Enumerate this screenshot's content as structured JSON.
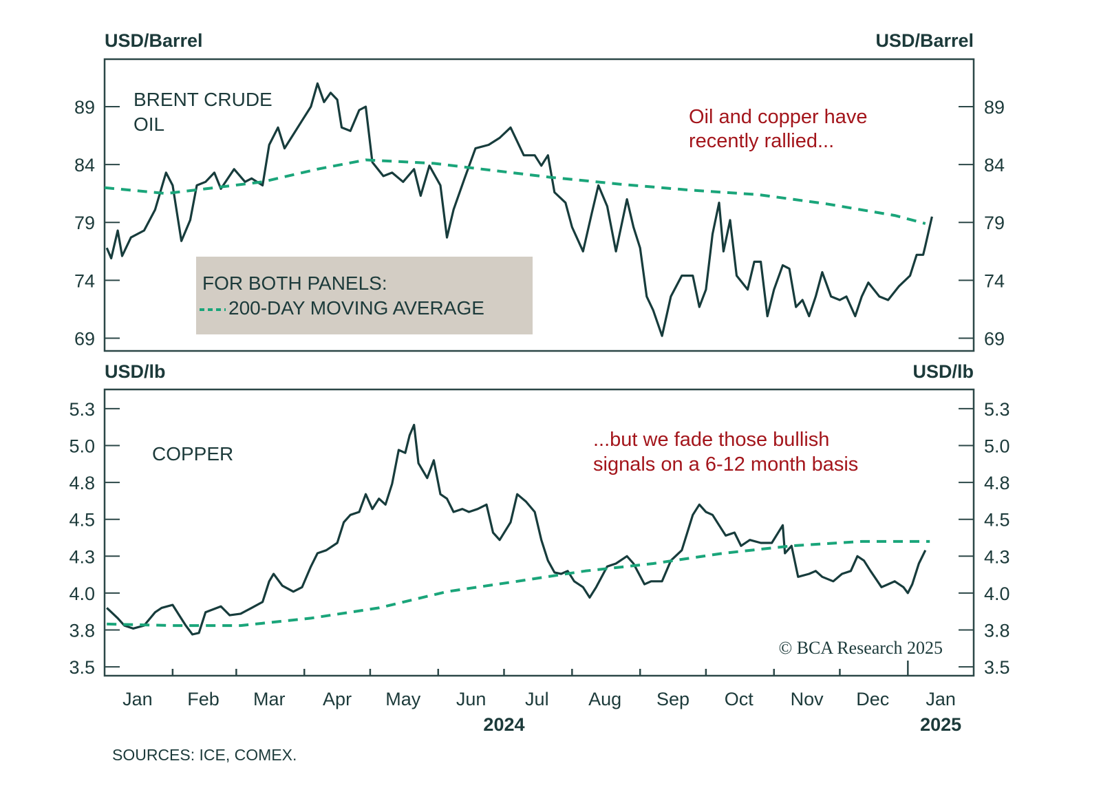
{
  "colors": {
    "price": "#173c3c",
    "moving_average": "#1aa57a",
    "annotation": "#a3151b",
    "legend_box": "#d3cdc4",
    "axis": "#2b4747"
  },
  "x_axis": {
    "unit": "days since 2024-01-01",
    "xlim": [
      0,
      396
    ],
    "month_starts": [
      31,
      60,
      91,
      121,
      152,
      182,
      213,
      244,
      274,
      305,
      335,
      366
    ],
    "month_labels": [
      {
        "label": "Jan",
        "center": 15
      },
      {
        "label": "Feb",
        "center": 45
      },
      {
        "label": "Mar",
        "center": 75
      },
      {
        "label": "Apr",
        "center": 106
      },
      {
        "label": "May",
        "center": 136
      },
      {
        "label": "Jun",
        "center": 167
      },
      {
        "label": "Jul",
        "center": 197
      },
      {
        "label": "Aug",
        "center": 228
      },
      {
        "label": "Sep",
        "center": 259
      },
      {
        "label": "Oct",
        "center": 289
      },
      {
        "label": "Nov",
        "center": 320
      },
      {
        "label": "Dec",
        "center": 350
      },
      {
        "label": "Jan",
        "center": 381
      }
    ],
    "year_labels": [
      {
        "label": "2024",
        "center": 182
      },
      {
        "label": "2025",
        "center": 381
      }
    ]
  },
  "legend": {
    "line1": "FOR BOTH PANELS:",
    "line2": "200-DAY MOVING AVERAGE"
  },
  "source": "SOURCES: ICE, COMEX.",
  "copyright": "© BCA Research 2025",
  "chart_data": [
    {
      "type": "line",
      "title": "BRENT CRUDE",
      "title_line2": "OIL",
      "ylabel_left": "USD/Barrel",
      "ylabel_right": "USD/Barrel",
      "ylim": [
        67.9,
        93.1
      ],
      "yticks": [
        69,
        74,
        79,
        84,
        89
      ],
      "ytick_labels": [
        "69",
        "74",
        "79",
        "84",
        "89"
      ],
      "annotation": {
        "line1": "Oil and copper have",
        "line2": "recently rallied..."
      },
      "series": [
        {
          "name": "Brent crude oil",
          "x": [
            1,
            3,
            6,
            8,
            12,
            18,
            23,
            28,
            31,
            35,
            39,
            42,
            46,
            50,
            53,
            59,
            64,
            67,
            72,
            75,
            79,
            82,
            86,
            90,
            94,
            97,
            100,
            103,
            106,
            108,
            112,
            116,
            119,
            122,
            127,
            131,
            136,
            141,
            144,
            148,
            153,
            156,
            159,
            164,
            169,
            175,
            180,
            185,
            191,
            196,
            199,
            202,
            205,
            210,
            213,
            218,
            222,
            225,
            229,
            233,
            238,
            241,
            244,
            247,
            250,
            254,
            258,
            263,
            268,
            271,
            274,
            277,
            280,
            282,
            285,
            288,
            293,
            296,
            299,
            302,
            305,
            309,
            312,
            315,
            318,
            321,
            324,
            327,
            331,
            335,
            338,
            342,
            345,
            348,
            353,
            357,
            362,
            367,
            370,
            373,
            374,
            377
          ],
          "y": [
            76.8,
            75.9,
            78.3,
            76.1,
            77.7,
            78.3,
            80.1,
            83.3,
            82.2,
            77.4,
            79.2,
            82.2,
            82.5,
            83.3,
            81.9,
            83.6,
            82.5,
            82.8,
            82.2,
            85.7,
            87.2,
            85.4,
            86.6,
            87.8,
            89.0,
            91.0,
            89.4,
            90.2,
            89.6,
            87.2,
            86.9,
            88.7,
            89.0,
            84.2,
            83.0,
            83.3,
            82.5,
            83.6,
            81.3,
            83.9,
            82.2,
            77.7,
            80.1,
            82.8,
            85.4,
            85.7,
            86.3,
            87.2,
            84.8,
            84.8,
            83.9,
            84.8,
            81.6,
            80.7,
            78.6,
            76.5,
            79.8,
            82.2,
            80.4,
            76.5,
            81.0,
            78.6,
            76.8,
            72.6,
            71.4,
            69.2,
            72.6,
            74.4,
            74.4,
            71.7,
            73.2,
            78.0,
            80.7,
            76.5,
            79.2,
            74.4,
            73.2,
            75.6,
            75.6,
            70.9,
            73.2,
            75.3,
            75.0,
            71.7,
            72.3,
            70.9,
            72.6,
            74.7,
            72.6,
            72.3,
            72.6,
            70.9,
            72.6,
            73.8,
            72.6,
            72.3,
            73.5,
            74.4,
            76.2,
            76.2,
            77.0,
            79.5
          ]
        },
        {
          "name": "200-day moving average",
          "style": "dashed",
          "x": [
            0,
            28,
            46,
            72,
            97,
            119,
            150,
            172,
            203,
            235,
            266,
            298,
            329,
            360,
            374
          ],
          "y": [
            82.0,
            81.5,
            81.9,
            82.5,
            83.6,
            84.4,
            84.1,
            83.6,
            82.9,
            82.3,
            81.8,
            81.4,
            80.6,
            79.6,
            78.9
          ]
        }
      ]
    },
    {
      "type": "line",
      "title": "COPPER",
      "ylabel_left": "USD/lb",
      "ylabel_right": "USD/lb",
      "ylim": [
        3.44,
        5.38
      ],
      "yticks": [
        3.5,
        3.75,
        4.0,
        4.25,
        4.5,
        4.75,
        5.0,
        5.25
      ],
      "ytick_labels": [
        "3.5",
        "3.8",
        "4.0",
        "4.3",
        "4.5",
        "4.8",
        "5.0",
        "5.3"
      ],
      "annotation": {
        "line1": "...but we fade those bullish",
        "line2": "signals on a 6-12 month basis"
      },
      "series": [
        {
          "name": "Copper",
          "x": [
            1,
            6,
            9,
            13,
            18,
            23,
            26,
            31,
            34,
            37,
            40,
            43,
            46,
            53,
            57,
            62,
            67,
            72,
            75,
            77,
            81,
            86,
            90,
            94,
            97,
            101,
            106,
            109,
            112,
            116,
            119,
            122,
            125,
            128,
            131,
            134,
            137,
            139,
            141,
            143,
            147,
            150,
            153,
            156,
            159,
            163,
            166,
            170,
            174,
            177,
            180,
            185,
            188,
            192,
            196,
            199,
            202,
            205,
            208,
            211,
            214,
            218,
            221,
            224,
            229,
            233,
            238,
            241,
            246,
            249,
            254,
            258,
            263,
            268,
            271,
            274,
            277,
            280,
            283,
            287,
            290,
            294,
            299,
            304,
            309,
            310,
            313,
            316,
            321,
            324,
            327,
            332,
            336,
            340,
            343,
            346,
            349,
            354,
            357,
            360,
            364,
            366,
            368,
            371,
            374
          ],
          "y": [
            3.9,
            3.83,
            3.78,
            3.76,
            3.78,
            3.87,
            3.9,
            3.92,
            3.85,
            3.78,
            3.72,
            3.73,
            3.87,
            3.91,
            3.85,
            3.86,
            3.9,
            3.94,
            4.08,
            4.13,
            4.05,
            4.01,
            4.04,
            4.18,
            4.27,
            4.29,
            4.34,
            4.48,
            4.53,
            4.55,
            4.67,
            4.57,
            4.64,
            4.6,
            4.74,
            4.97,
            4.95,
            5.07,
            5.14,
            4.88,
            4.78,
            4.9,
            4.67,
            4.64,
            4.55,
            4.57,
            4.55,
            4.57,
            4.6,
            4.41,
            4.36,
            4.48,
            4.67,
            4.62,
            4.55,
            4.36,
            4.22,
            4.14,
            4.13,
            4.15,
            4.08,
            4.04,
            3.97,
            4.04,
            4.18,
            4.2,
            4.25,
            4.2,
            4.06,
            4.08,
            4.08,
            4.22,
            4.29,
            4.53,
            4.6,
            4.55,
            4.53,
            4.46,
            4.39,
            4.41,
            4.32,
            4.36,
            4.34,
            4.34,
            4.46,
            4.27,
            4.32,
            4.11,
            4.13,
            4.15,
            4.11,
            4.08,
            4.13,
            4.15,
            4.25,
            4.22,
            4.15,
            4.04,
            4.06,
            4.08,
            4.04,
            4.0,
            4.06,
            4.2,
            4.29
          ]
        },
        {
          "name": "200-day moving average",
          "style": "dashed",
          "x": [
            1,
            31,
            62,
            94,
            125,
            156,
            188,
            219,
            250,
            282,
            313,
            345,
            376
          ],
          "y": [
            3.79,
            3.78,
            3.78,
            3.83,
            3.9,
            4.01,
            4.08,
            4.15,
            4.2,
            4.27,
            4.32,
            4.35,
            4.35
          ]
        }
      ]
    }
  ]
}
